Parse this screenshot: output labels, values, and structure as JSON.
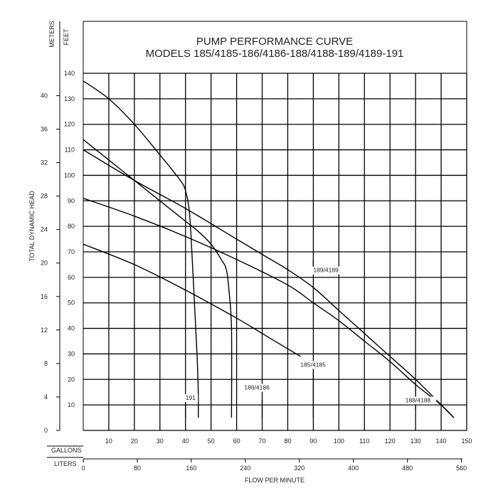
{
  "chart_data": {
    "type": "line",
    "title": "PUMP PERFORMANCE CURVE",
    "subtitle": "MODELS 185/4185-186/4186-188/4188-189/4189-191",
    "ylabel": "TOTAL DYNAMIC HEAD",
    "ylabel_feet": "FEET",
    "ylabel_meters": "METERS",
    "xlabel": "FLOW PER MINUTE",
    "xlabel_gallons": "GALLONS",
    "xlabel_liters": "LITERS",
    "xlim": [
      0,
      150
    ],
    "ylim": [
      0,
      140
    ],
    "x_ticks_gallons": [
      "10",
      "20",
      "30",
      "40",
      "50",
      "60",
      "70",
      "80",
      "90",
      "100",
      "110",
      "120",
      "130",
      "140",
      "150"
    ],
    "y_ticks_feet": [
      "10",
      "20",
      "30",
      "40",
      "50",
      "60",
      "70",
      "80",
      "90",
      "100",
      "110",
      "120",
      "130",
      "140"
    ],
    "x_ticks_liters": [
      "0",
      "80",
      "160",
      "240",
      "320",
      "400",
      "480",
      "560"
    ],
    "y_ticks_meters": [
      "0",
      "4",
      "8",
      "12",
      "16",
      "20",
      "24",
      "28",
      "32",
      "36",
      "40"
    ],
    "series": [
      {
        "name": "191",
        "x": [
          0,
          10,
          20,
          30,
          38,
          40,
          41.5,
          42.5,
          43.5,
          44.5,
          45,
          45
        ],
        "y": [
          137,
          130,
          120,
          108,
          98,
          94,
          86,
          70,
          50,
          30,
          15,
          5
        ]
      },
      {
        "name": "186/4186",
        "x": [
          0,
          10,
          20,
          30,
          40,
          45,
          50,
          54,
          56,
          57,
          58,
          58
        ],
        "y": [
          114,
          106,
          98,
          90,
          82,
          78,
          73,
          67,
          63,
          55,
          40,
          5
        ]
      },
      {
        "name": "189/4189",
        "x": [
          0,
          20,
          40,
          60,
          70,
          80,
          90,
          100,
          110,
          120,
          130,
          140,
          145
        ],
        "y": [
          110,
          98,
          87,
          75,
          69,
          63,
          56,
          47,
          38,
          29,
          20,
          10,
          5
        ]
      },
      {
        "name": "188/4188",
        "x": [
          0,
          20,
          40,
          60,
          80,
          90,
          100,
          110,
          120,
          130,
          140,
          145
        ],
        "y": [
          91,
          84,
          76,
          67,
          57,
          50,
          43,
          35,
          27,
          18,
          10,
          5
        ]
      },
      {
        "name": "185/4185",
        "x": [
          0,
          20,
          40,
          60,
          70,
          80,
          85
        ],
        "y": [
          73,
          65,
          55,
          44,
          38,
          32,
          29
        ]
      }
    ],
    "labels": [
      {
        "text": "189/4189",
        "x": 90,
        "y": 62
      },
      {
        "text": "188/4188",
        "x": 126,
        "y": 11
      },
      {
        "text": "186/4186",
        "x": 63,
        "y": 16
      },
      {
        "text": "185/4185",
        "x": 85,
        "y": 25
      },
      {
        "text": "191",
        "x": 40,
        "y": 12
      }
    ],
    "label_ticks": [
      {
        "series": "191",
        "x": 40,
        "y_from": 5,
        "y_to": 10
      },
      {
        "series": "186/4186",
        "x": 70,
        "y_from": 5,
        "y_to": 12
      },
      {
        "series": "185/4185",
        "x": 90,
        "y_from": 5,
        "y_to": 23
      },
      {
        "series": "188/4188",
        "x": 130,
        "y_from": 8,
        "y_to": 19
      },
      {
        "series": "189/4189",
        "x": 90,
        "y_from": 64,
        "y_to": 67
      }
    ],
    "grid": true
  }
}
